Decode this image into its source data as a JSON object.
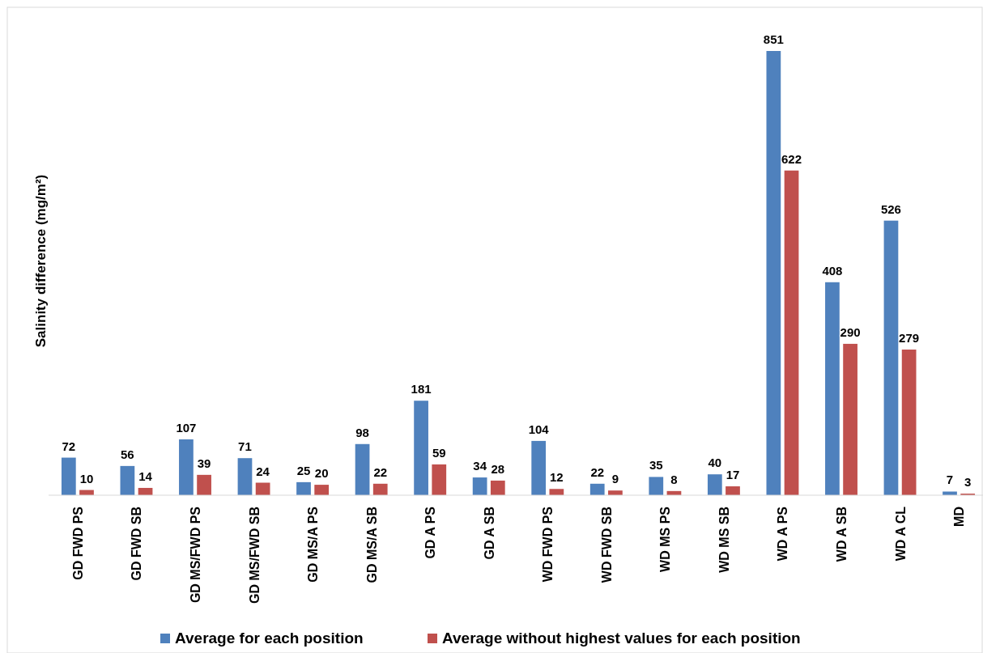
{
  "chart_data": {
    "type": "bar",
    "ylabel": "Salinity difference (mg/m²)",
    "categories": [
      "GD FWD PS",
      "GD FWD SB",
      "GD MS/FWD PS",
      "GD MS/FWD SB",
      "GD MS/A PS",
      "GD MS/A SB",
      "GD A PS",
      "GD A SB",
      "WD FWD PS",
      "WD FWD SB",
      "WD MS PS",
      "WD MS SB",
      "WD A PS",
      "WD A SB",
      "WD A CL",
      "MD"
    ],
    "series": [
      {
        "name": "Average for each position",
        "color": "#4f81bd",
        "values": [
          72,
          56,
          107,
          71,
          25,
          98,
          181,
          34,
          104,
          22,
          35,
          40,
          851,
          408,
          526,
          7
        ]
      },
      {
        "name": "Average without highest values for each position",
        "color": "#c0504d",
        "values": [
          10,
          14,
          39,
          24,
          20,
          22,
          59,
          28,
          12,
          9,
          8,
          17,
          622,
          290,
          279,
          3
        ]
      }
    ],
    "data_labels": true,
    "legend": "bottom",
    "grid": false
  }
}
